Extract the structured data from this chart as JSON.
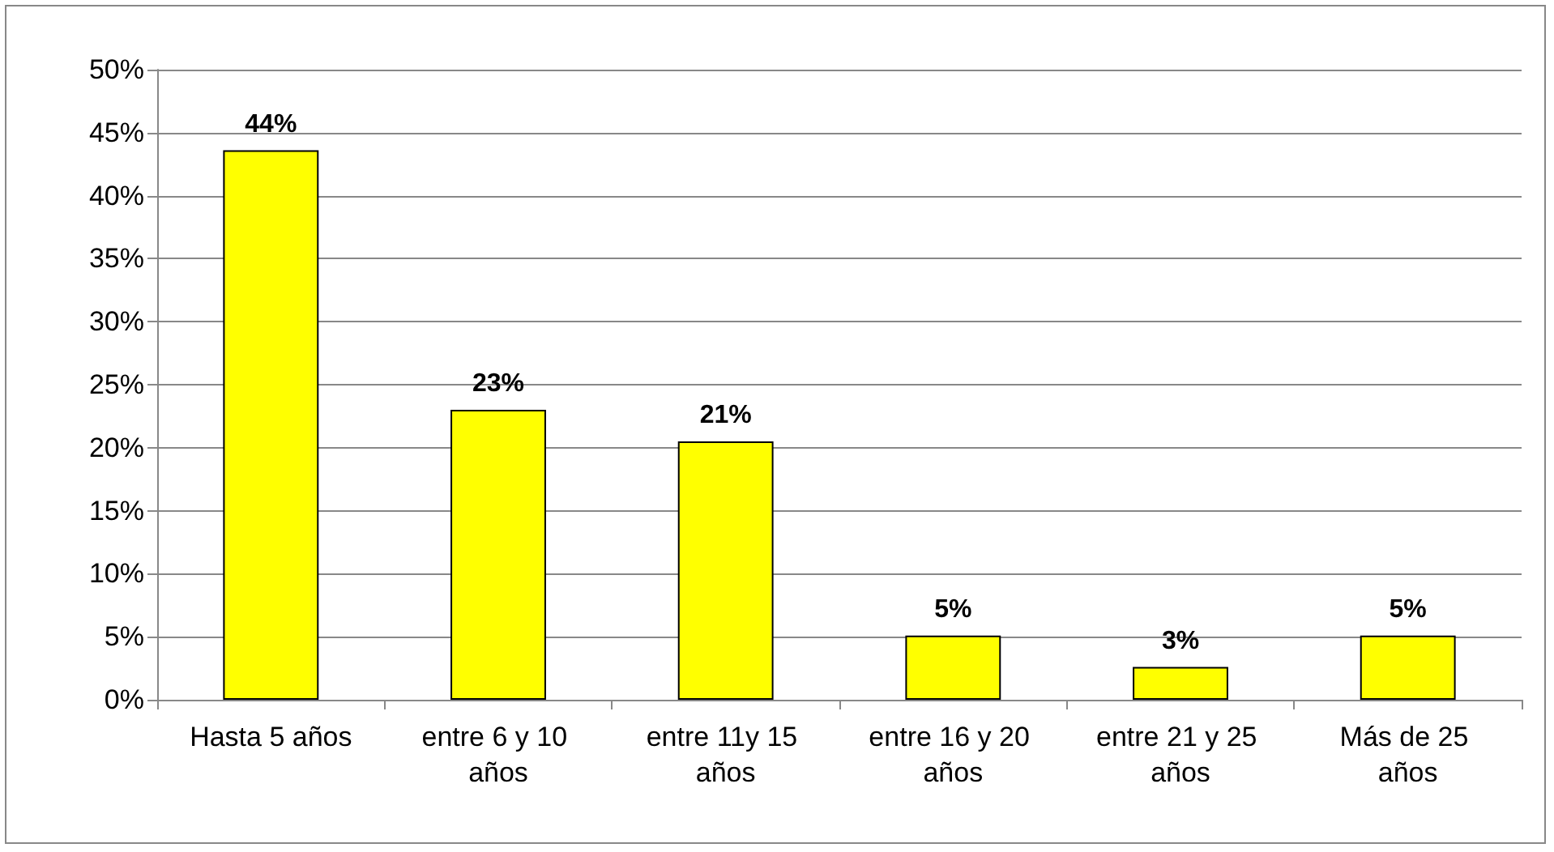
{
  "chart_data": {
    "type": "bar",
    "categories": [
      "Hasta 5 años",
      "entre 6 y 10 años",
      "entre 11y 15 años",
      "entre 16 y 20 años",
      "entre 21 y 25 años",
      "Más de 25 años"
    ],
    "values": [
      43.6,
      23,
      20.5,
      5.1,
      2.6,
      5.1
    ],
    "value_labels": [
      "44%",
      "23%",
      "21%",
      "5%",
      "3%",
      "5%"
    ],
    "color": "#ffff00",
    "ylim": [
      0,
      50
    ],
    "yticks": [
      {
        "value": 0,
        "label": "0%"
      },
      {
        "value": 5,
        "label": "5%"
      },
      {
        "value": 10,
        "label": "10%"
      },
      {
        "value": 15,
        "label": "15%"
      },
      {
        "value": 20,
        "label": "20%"
      },
      {
        "value": 25,
        "label": "25%"
      },
      {
        "value": 30,
        "label": "30%"
      },
      {
        "value": 35,
        "label": "35%"
      },
      {
        "value": 40,
        "label": "40%"
      },
      {
        "value": 45,
        "label": "45%"
      },
      {
        "value": 50,
        "label": "50%"
      }
    ],
    "grid": "y"
  }
}
